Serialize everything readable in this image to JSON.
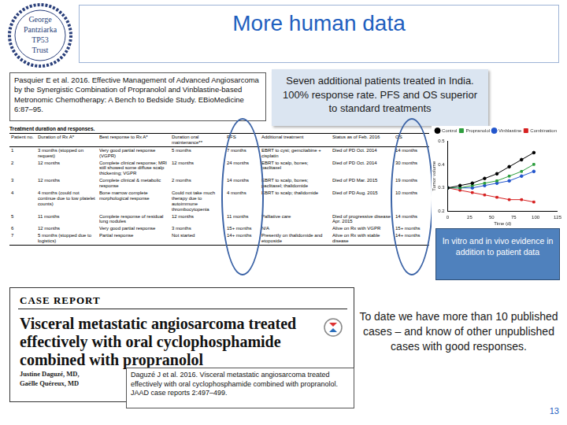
{
  "logo": {
    "lines": [
      "George",
      "Pantziarka",
      "TP53",
      "Trust"
    ]
  },
  "title": "More human data",
  "citation_1": "Pasquier E et al. 2016. Effective Management of Advanced Angiosarcoma by the Synergistic Combination of Propranolol and Vinblastine-based Metronomic Chemotherapy: A Bench to Bedside Study. EBioMedicine 6:87–95.",
  "summary_box": "Seven additional patients treated in India. 100% response rate. PFS and OS superior to standard treatments",
  "table": {
    "caption": "Treatment duration and responses.",
    "header": [
      "Patient no.",
      "Duration of Rx A*",
      "Best response to Rx A*",
      "Duration oral maintenance**",
      "PFS",
      "Additional treatment",
      "Status as of Feb. 2016",
      "OS"
    ],
    "rows": [
      [
        "1",
        "3 months (stopped on request)",
        "Very good partial response (VGPR)",
        "5 months",
        "7 months",
        "EBRT to cyst; gemcitabine + cisplatin",
        "Died of PD Oct. 2014",
        "14 months"
      ],
      [
        "2",
        "12 months",
        "Complete clinical response; MRI still showed some diffuse scalp thickening; VGPR",
        "12 months",
        "24 months",
        "EBRT to scalp, bones; paclitaxel",
        "Died of PD Oct. 2014",
        "30 months"
      ],
      [
        "3",
        "12 months",
        "Complete clinical & metabolic response",
        "2 months",
        "14 months",
        "EBRT to scalp, bones; paclitaxel; thalidomide",
        "Died of PD Mar. 2015",
        "19 months"
      ],
      [
        "4",
        "4 months (could not continue due to low platelet counts)",
        "Bone marrow complete morphological response",
        "Could not take much therapy due to autoimmune thrombocytopenia",
        "4 months",
        "EBRT to scalp; thalidomide",
        "Died of PD Aug. 2015",
        "10 months"
      ],
      [
        "5",
        "11 months",
        "Complete response of residual lung nodules",
        "12 months",
        "11 months",
        "Palliative care",
        "Died of progressive disease Apr. 2015",
        "14 months"
      ],
      [
        "6",
        "12 months",
        "Very good partial response",
        "3 months",
        "15+ months",
        "N/A",
        "Alive on Rx with VGPR",
        "15+ months"
      ],
      [
        "7",
        "5 months (stopped due to logistics)",
        "Partial response",
        "Not started",
        "14+ months",
        "Presently on thalidomide and etoposide",
        "Alive on Rx with stable disease",
        "14+ months"
      ]
    ]
  },
  "chart_data": {
    "type": "line",
    "x_label": "Time (d)",
    "y_label": "Tumor volume",
    "x": [
      0,
      14,
      28,
      42,
      56,
      70,
      84,
      98
    ],
    "series": [
      {
        "name": "Control",
        "color": "#000000",
        "marker": "circle",
        "values": [
          0.3,
          0.31,
          0.32,
          0.34,
          0.36,
          0.39,
          0.42,
          0.45
        ]
      },
      {
        "name": "Propranolol",
        "color": "#2e9e3e",
        "marker": "square",
        "values": [
          0.3,
          0.3,
          0.31,
          0.32,
          0.33,
          0.35,
          0.37,
          0.4
        ]
      },
      {
        "name": "Vinblastine",
        "color": "#2255cc",
        "marker": "circle",
        "values": [
          0.3,
          0.3,
          0.3,
          0.31,
          0.32,
          0.33,
          0.35,
          0.37
        ]
      },
      {
        "name": "Combination",
        "color": "#d62020",
        "marker": "square",
        "values": [
          0.3,
          0.29,
          0.28,
          0.27,
          0.26,
          0.25,
          0.25,
          0.24
        ]
      }
    ],
    "xlim": [
      0,
      125
    ],
    "xticks": [
      0,
      25,
      50,
      75,
      100,
      125
    ],
    "ylim": [
      0.2,
      0.5
    ],
    "yticks": [
      0.2,
      0.3,
      0.4,
      0.5
    ],
    "grid": false,
    "legend": "top"
  },
  "callout": "In vitro and in vivo evidence in addition to patient data",
  "case_report": {
    "header": "CASE REPORT",
    "title": "Visceral metastatic angiosarcoma treated effectively with oral cyclophosphamide combined with propranolol",
    "authors": [
      "Justine Daguzé, MD,",
      "Gaëlle Quéreux, MD"
    ]
  },
  "citation_2": "Daguzé J et al. 2016. Visceral metastatic angiosarcoma treated effectively with oral cyclophosphamide combined with propranolol. JAAD case reports 2:497–499.",
  "note": "To date we have more than 10 published cases – and know of other unpublished cases with good responses.",
  "page_number": "13"
}
